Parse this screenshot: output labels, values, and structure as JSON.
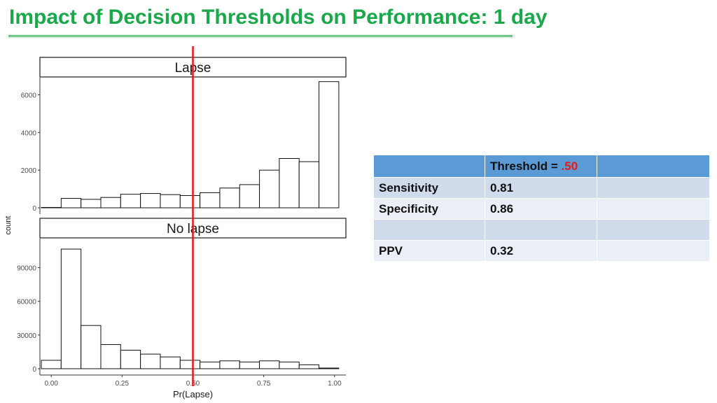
{
  "slide": {
    "title": "Impact of Decision Thresholds on Performance:  1 day",
    "title_color": "#1aa84a"
  },
  "chart_data": {
    "type": "bar",
    "subtype": "faceted-histogram",
    "xlabel": "Pr(Lapse)",
    "ylabel": "count",
    "xlim": [
      -0.04,
      1.04
    ],
    "x_ticks": [
      "0.00",
      "0.25",
      "0.50",
      "0.75",
      "1.00"
    ],
    "x_tick_values": [
      0,
      0.25,
      0.5,
      0.75,
      1.0
    ],
    "bin_width": 0.07,
    "bin_start": -0.035,
    "threshold": 0.5,
    "threshold_color": "#e3191b",
    "facets": [
      {
        "name": "Lapse",
        "ylim": [
          0,
          6800
        ],
        "y_ticks": [
          "0",
          "2000",
          "4000",
          "6000"
        ],
        "y_tick_values": [
          0,
          2000,
          4000,
          6000
        ],
        "values": [
          20,
          500,
          450,
          550,
          720,
          760,
          700,
          650,
          800,
          1050,
          1230,
          2000,
          2620,
          2450,
          6700
        ]
      },
      {
        "name": "No lapse",
        "ylim": [
          0,
          114000
        ],
        "y_ticks": [
          "0",
          "30000",
          "60000",
          "90000"
        ],
        "y_tick_values": [
          0,
          30000,
          60000,
          90000
        ],
        "values": [
          7500,
          106500,
          38500,
          21500,
          16500,
          13000,
          10500,
          7500,
          6000,
          7000,
          6000,
          7000,
          6000,
          3500,
          600
        ]
      }
    ]
  },
  "table": {
    "header": [
      "",
      "Threshold = ",
      ".50",
      ""
    ],
    "rows": [
      [
        "Sensitivity",
        "0.81",
        ""
      ],
      [
        "Specificity",
        "0.86",
        ""
      ],
      [
        "",
        "",
        ""
      ],
      [
        "PPV",
        "0.32",
        ""
      ]
    ]
  }
}
